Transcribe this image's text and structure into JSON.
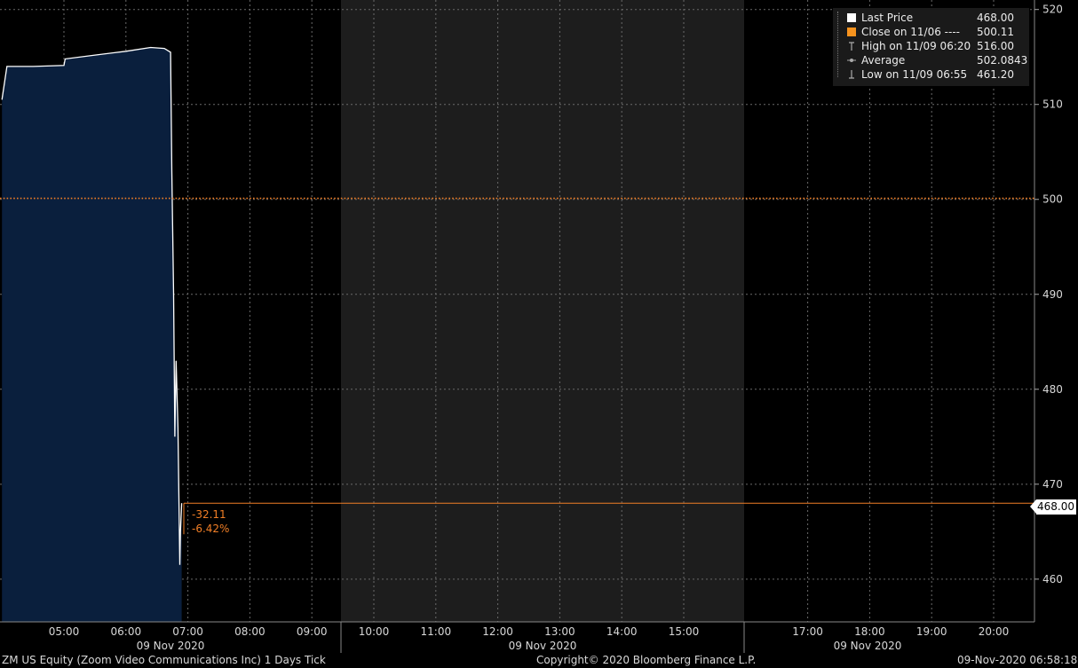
{
  "chart_data": {
    "type": "area",
    "ticker": "ZM US Equity (Zoom Video Communications Inc) 1 Days  Tick",
    "x_tick_labels": [
      "05:00",
      "06:00",
      "07:00",
      "08:00",
      "09:00",
      "10:00",
      "11:00",
      "12:00",
      "13:00",
      "14:00",
      "15:00",
      "17:00",
      "18:00",
      "19:00",
      "20:00"
    ],
    "date_labels": [
      "09 Nov 2020",
      "09 Nov 2020",
      "09 Nov 2020"
    ],
    "y_ticks": [
      460,
      470,
      480,
      490,
      500,
      510,
      520
    ],
    "ylim": [
      455.5,
      521
    ],
    "x_range_hours": [
      4.0,
      20.7
    ],
    "series": [
      {
        "name": "Last Price",
        "color": "#ffffff",
        "fill": "#0a1f3d",
        "points": [
          [
            4.0,
            510.5
          ],
          [
            4.08,
            514.0
          ],
          [
            4.5,
            514.0
          ],
          [
            5.0,
            514.1
          ],
          [
            5.02,
            514.8
          ],
          [
            5.5,
            515.2
          ],
          [
            6.0,
            515.6
          ],
          [
            6.4,
            516.0
          ],
          [
            6.62,
            515.9
          ],
          [
            6.72,
            515.5
          ],
          [
            6.74,
            503.0
          ],
          [
            6.77,
            490.0
          ],
          [
            6.79,
            475.0
          ],
          [
            6.81,
            483.0
          ],
          [
            6.84,
            476.0
          ],
          [
            6.87,
            461.5
          ],
          [
            6.88,
            465.0
          ],
          [
            6.9,
            468.0
          ]
        ]
      }
    ],
    "close_prev": {
      "value": 500.11,
      "color": "#f07e26"
    },
    "last_price": {
      "value": 468.0,
      "color": "#f07e26"
    },
    "shaded_sessions": [
      [
        9.5,
        16.0
      ]
    ]
  },
  "legend": [
    {
      "icon": "white-square-icon",
      "label": "Last Price",
      "value": "468.00"
    },
    {
      "icon": "orange-square-icon",
      "label": "Close on 11/06 ----",
      "value": "500.11"
    },
    {
      "icon": "high-marker-icon",
      "label": "High on 11/09 06:20",
      "value": "516.00"
    },
    {
      "icon": "average-marker-icon",
      "label": "Average",
      "value": "502.0843"
    },
    {
      "icon": "low-marker-icon",
      "label": "Low on 11/09 06:55",
      "value": "461.20"
    }
  ],
  "last_price_tag": "468.00",
  "change_annotation": {
    "abs": "-32.11",
    "pct": "-6.42%"
  },
  "footer": {
    "left": "ZM US Equity (Zoom Video Communications Inc) 1 Days  Tick",
    "center": "Copyright© 2020 Bloomberg Finance L.P.",
    "right": "09-Nov-2020 06:58:18"
  },
  "colors": {
    "background": "#000000",
    "area_fill": "#0a1f3d",
    "shade": "#1d1d1d",
    "close_line": "#f07e26",
    "grid": "#666666"
  }
}
